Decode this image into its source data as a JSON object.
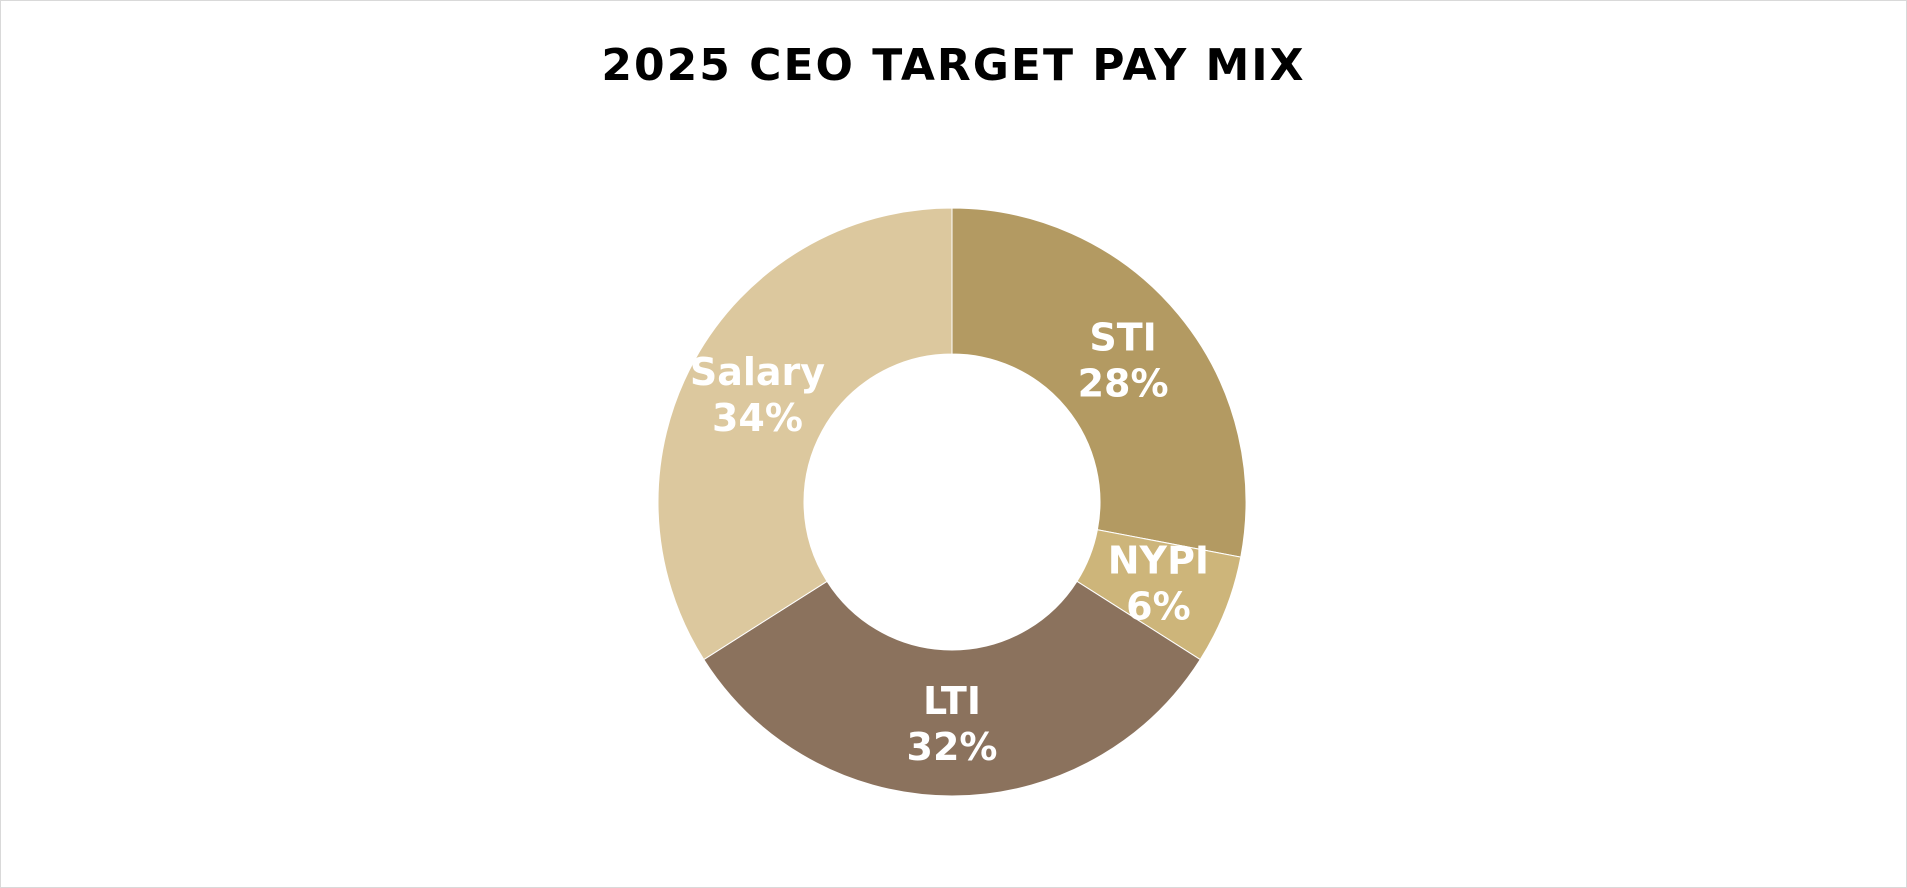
{
  "chart_data": {
    "type": "pie",
    "variant": "donut",
    "title": "2025 CEO TARGET PAY MIX",
    "slices": [
      {
        "label": "STI",
        "value": 28,
        "display": "28%",
        "color": "#b39a62"
      },
      {
        "label": "NYPI",
        "value": 6,
        "display": "6%",
        "color": "#cdb57a"
      },
      {
        "label": "LTI",
        "value": 32,
        "display": "32%",
        "color": "#8b725d"
      },
      {
        "label": "Salary",
        "value": 34,
        "display": "34%",
        "color": "#dcc89e"
      }
    ],
    "start_angle_deg": 0,
    "direction": "clockwise",
    "legend": "none"
  }
}
